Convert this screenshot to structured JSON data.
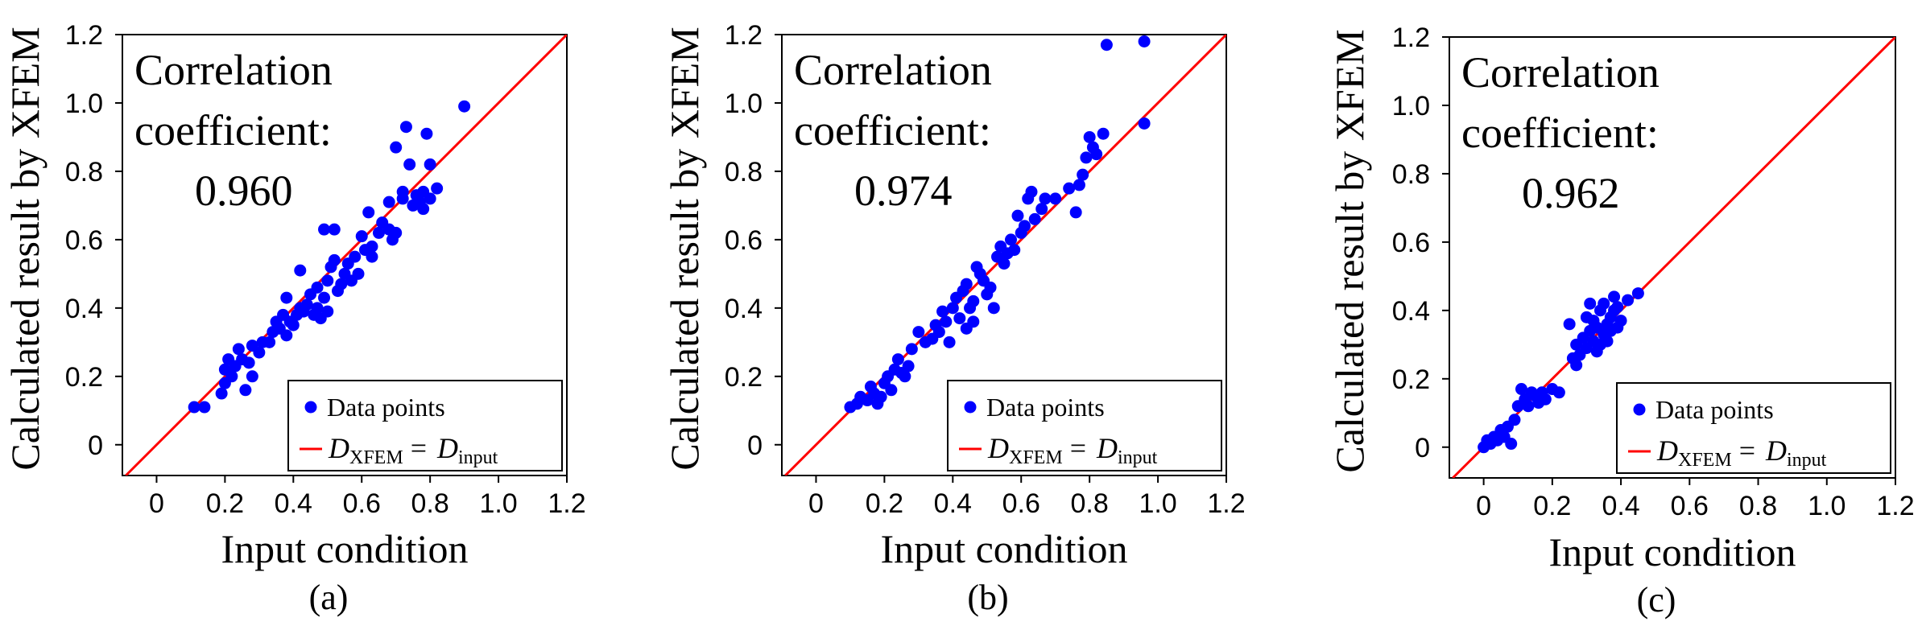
{
  "chart_data": [
    {
      "type": "scatter",
      "panel_label": "(a)",
      "xlabel": "Input condition",
      "ylabel": "Calculated result by XFEM",
      "xlim": [
        -0.1,
        1.2
      ],
      "ylim": [
        -0.09,
        1.2
      ],
      "xticks": [
        "0",
        "0.2",
        "0.4",
        "0.6",
        "0.8",
        "1.0",
        "1.2"
      ],
      "yticks": [
        "0",
        "0.2",
        "0.4",
        "0.6",
        "0.8",
        "1.0",
        "1.2"
      ],
      "annotation": [
        "Correlation",
        "coefficient:",
        "0.960"
      ],
      "legend": {
        "position": "bottom-right",
        "points": "Data points",
        "line": {
          "lhs": "D",
          "lhs_sub": "XFEM",
          "eq": " = ",
          "rhs": "D",
          "rhs_sub": "input"
        }
      },
      "colors": {
        "points": "#0000ff",
        "line": "#ff0000"
      },
      "reference_line": "y = x",
      "series": [
        {
          "name": "Data points",
          "points": [
            [
              0.11,
              0.11
            ],
            [
              0.14,
              0.11
            ],
            [
              0.19,
              0.15
            ],
            [
              0.2,
              0.18
            ],
            [
              0.2,
              0.22
            ],
            [
              0.21,
              0.25
            ],
            [
              0.22,
              0.2
            ],
            [
              0.23,
              0.23
            ],
            [
              0.24,
              0.28
            ],
            [
              0.25,
              0.25
            ],
            [
              0.26,
              0.16
            ],
            [
              0.27,
              0.24
            ],
            [
              0.28,
              0.2
            ],
            [
              0.28,
              0.29
            ],
            [
              0.3,
              0.27
            ],
            [
              0.31,
              0.3
            ],
            [
              0.33,
              0.3
            ],
            [
              0.34,
              0.33
            ],
            [
              0.35,
              0.36
            ],
            [
              0.36,
              0.34
            ],
            [
              0.37,
              0.38
            ],
            [
              0.38,
              0.32
            ],
            [
              0.38,
              0.43
            ],
            [
              0.39,
              0.36
            ],
            [
              0.4,
              0.35
            ],
            [
              0.41,
              0.38
            ],
            [
              0.42,
              0.4
            ],
            [
              0.42,
              0.51
            ],
            [
              0.43,
              0.39
            ],
            [
              0.44,
              0.41
            ],
            [
              0.45,
              0.44
            ],
            [
              0.46,
              0.38
            ],
            [
              0.47,
              0.4
            ],
            [
              0.47,
              0.46
            ],
            [
              0.48,
              0.37
            ],
            [
              0.49,
              0.43
            ],
            [
              0.49,
              0.63
            ],
            [
              0.5,
              0.39
            ],
            [
              0.5,
              0.48
            ],
            [
              0.51,
              0.52
            ],
            [
              0.52,
              0.54
            ],
            [
              0.52,
              0.63
            ],
            [
              0.53,
              0.45
            ],
            [
              0.54,
              0.47
            ],
            [
              0.55,
              0.5
            ],
            [
              0.56,
              0.53
            ],
            [
              0.57,
              0.48
            ],
            [
              0.58,
              0.55
            ],
            [
              0.59,
              0.5
            ],
            [
              0.6,
              0.61
            ],
            [
              0.61,
              0.57
            ],
            [
              0.62,
              0.68
            ],
            [
              0.63,
              0.55
            ],
            [
              0.63,
              0.58
            ],
            [
              0.65,
              0.62
            ],
            [
              0.66,
              0.65
            ],
            [
              0.68,
              0.63
            ],
            [
              0.68,
              0.71
            ],
            [
              0.69,
              0.6
            ],
            [
              0.7,
              0.62
            ],
            [
              0.7,
              0.87
            ],
            [
              0.72,
              0.72
            ],
            [
              0.72,
              0.74
            ],
            [
              0.73,
              0.93
            ],
            [
              0.74,
              0.82
            ],
            [
              0.75,
              0.7
            ],
            [
              0.76,
              0.73
            ],
            [
              0.77,
              0.71
            ],
            [
              0.78,
              0.69
            ],
            [
              0.78,
              0.74
            ],
            [
              0.79,
              0.91
            ],
            [
              0.8,
              0.82
            ],
            [
              0.8,
              0.72
            ],
            [
              0.82,
              0.75
            ],
            [
              0.9,
              0.99
            ]
          ]
        }
      ]
    },
    {
      "type": "scatter",
      "panel_label": "(b)",
      "xlabel": "Input condition",
      "ylabel": "Calculated result by XFEM",
      "xlim": [
        -0.1,
        1.2
      ],
      "ylim": [
        -0.09,
        1.2
      ],
      "xticks": [
        "0",
        "0.2",
        "0.4",
        "0.6",
        "0.8",
        "1.0",
        "1.2"
      ],
      "yticks": [
        "0",
        "0.2",
        "0.4",
        "0.6",
        "0.8",
        "1.0",
        "1.2"
      ],
      "annotation": [
        "Correlation",
        "coefficient:",
        "0.974"
      ],
      "legend": {
        "position": "bottom-right",
        "points": "Data points",
        "line": {
          "lhs": "D",
          "lhs_sub": "XFEM",
          "eq": " = ",
          "rhs": "D",
          "rhs_sub": "input"
        }
      },
      "colors": {
        "points": "#0000ff",
        "line": "#ff0000"
      },
      "reference_line": "y = x",
      "series": [
        {
          "name": "Data points",
          "points": [
            [
              0.1,
              0.11
            ],
            [
              0.12,
              0.12
            ],
            [
              0.13,
              0.14
            ],
            [
              0.15,
              0.13
            ],
            [
              0.16,
              0.17
            ],
            [
              0.17,
              0.15
            ],
            [
              0.18,
              0.12
            ],
            [
              0.19,
              0.14
            ],
            [
              0.2,
              0.18
            ],
            [
              0.21,
              0.2
            ],
            [
              0.22,
              0.16
            ],
            [
              0.23,
              0.22
            ],
            [
              0.24,
              0.25
            ],
            [
              0.25,
              0.21
            ],
            [
              0.26,
              0.2
            ],
            [
              0.27,
              0.23
            ],
            [
              0.28,
              0.28
            ],
            [
              0.3,
              0.33
            ],
            [
              0.32,
              0.3
            ],
            [
              0.34,
              0.31
            ],
            [
              0.35,
              0.35
            ],
            [
              0.36,
              0.33
            ],
            [
              0.37,
              0.39
            ],
            [
              0.38,
              0.36
            ],
            [
              0.39,
              0.3
            ],
            [
              0.4,
              0.4
            ],
            [
              0.41,
              0.43
            ],
            [
              0.42,
              0.37
            ],
            [
              0.43,
              0.45
            ],
            [
              0.44,
              0.47
            ],
            [
              0.44,
              0.34
            ],
            [
              0.45,
              0.4
            ],
            [
              0.46,
              0.42
            ],
            [
              0.46,
              0.36
            ],
            [
              0.47,
              0.52
            ],
            [
              0.48,
              0.5
            ],
            [
              0.49,
              0.48
            ],
            [
              0.5,
              0.44
            ],
            [
              0.51,
              0.46
            ],
            [
              0.52,
              0.4
            ],
            [
              0.53,
              0.55
            ],
            [
              0.54,
              0.58
            ],
            [
              0.55,
              0.53
            ],
            [
              0.56,
              0.56
            ],
            [
              0.57,
              0.6
            ],
            [
              0.58,
              0.57
            ],
            [
              0.59,
              0.67
            ],
            [
              0.6,
              0.62
            ],
            [
              0.61,
              0.64
            ],
            [
              0.62,
              0.72
            ],
            [
              0.63,
              0.74
            ],
            [
              0.64,
              0.66
            ],
            [
              0.66,
              0.69
            ],
            [
              0.67,
              0.72
            ],
            [
              0.7,
              0.72
            ],
            [
              0.74,
              0.75
            ],
            [
              0.76,
              0.68
            ],
            [
              0.77,
              0.76
            ],
            [
              0.78,
              0.79
            ],
            [
              0.79,
              0.84
            ],
            [
              0.8,
              0.9
            ],
            [
              0.81,
              0.87
            ],
            [
              0.82,
              0.85
            ],
            [
              0.84,
              0.91
            ],
            [
              0.85,
              1.17
            ],
            [
              0.96,
              1.18
            ],
            [
              0.96,
              0.94
            ]
          ]
        }
      ]
    },
    {
      "type": "scatter",
      "panel_label": "(c)",
      "xlabel": "Input condition",
      "ylabel": "Calculated result by XFEM",
      "xlim": [
        -0.1,
        1.2
      ],
      "ylim": [
        -0.09,
        1.2
      ],
      "xticks": [
        "0",
        "0.2",
        "0.4",
        "0.6",
        "0.8",
        "1.0",
        "1.2"
      ],
      "yticks": [
        "0",
        "0.2",
        "0.4",
        "0.6",
        "0.8",
        "1.0",
        "1.2"
      ],
      "annotation": [
        "Correlation",
        "coefficient:",
        "0.962"
      ],
      "legend": {
        "position": "bottom-right",
        "points": "Data points",
        "line": {
          "lhs": "D",
          "lhs_sub": "XFEM",
          "eq": " = ",
          "rhs": "D",
          "rhs_sub": "input"
        }
      },
      "colors": {
        "points": "#0000ff",
        "line": "#ff0000"
      },
      "reference_line": "y = x",
      "series": [
        {
          "name": "Data points",
          "points": [
            [
              0.0,
              0.0
            ],
            [
              0.01,
              0.02
            ],
            [
              0.02,
              0.01
            ],
            [
              0.03,
              0.03
            ],
            [
              0.04,
              0.02
            ],
            [
              0.05,
              0.05
            ],
            [
              0.06,
              0.03
            ],
            [
              0.07,
              0.06
            ],
            [
              0.08,
              0.01
            ],
            [
              0.09,
              0.08
            ],
            [
              0.1,
              0.12
            ],
            [
              0.11,
              0.17
            ],
            [
              0.12,
              0.14
            ],
            [
              0.13,
              0.12
            ],
            [
              0.14,
              0.16
            ],
            [
              0.15,
              0.15
            ],
            [
              0.16,
              0.13
            ],
            [
              0.17,
              0.16
            ],
            [
              0.18,
              0.14
            ],
            [
              0.2,
              0.17
            ],
            [
              0.22,
              0.16
            ],
            [
              0.25,
              0.36
            ],
            [
              0.26,
              0.26
            ],
            [
              0.27,
              0.24
            ],
            [
              0.27,
              0.3
            ],
            [
              0.28,
              0.27
            ],
            [
              0.29,
              0.32
            ],
            [
              0.3,
              0.29
            ],
            [
              0.3,
              0.38
            ],
            [
              0.31,
              0.34
            ],
            [
              0.31,
              0.42
            ],
            [
              0.32,
              0.31
            ],
            [
              0.32,
              0.37
            ],
            [
              0.33,
              0.28
            ],
            [
              0.33,
              0.35
            ],
            [
              0.34,
              0.4
            ],
            [
              0.34,
              0.3
            ],
            [
              0.35,
              0.33
            ],
            [
              0.35,
              0.42
            ],
            [
              0.36,
              0.36
            ],
            [
              0.36,
              0.31
            ],
            [
              0.37,
              0.38
            ],
            [
              0.37,
              0.34
            ],
            [
              0.38,
              0.44
            ],
            [
              0.38,
              0.4
            ],
            [
              0.39,
              0.35
            ],
            [
              0.39,
              0.41
            ],
            [
              0.4,
              0.37
            ],
            [
              0.42,
              0.43
            ],
            [
              0.45,
              0.45
            ]
          ]
        }
      ]
    }
  ]
}
